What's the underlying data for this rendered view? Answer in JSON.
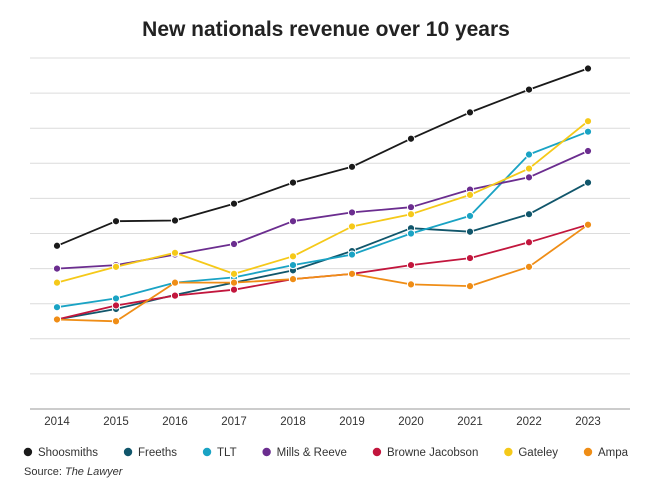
{
  "chart_data": {
    "type": "line",
    "title": "New nationals revenue over 10 years",
    "x": [
      "2014",
      "2015",
      "2016",
      "2017",
      "2018",
      "2019",
      "2020",
      "2021",
      "2022",
      "2023"
    ],
    "ylim": [
      0,
      100
    ],
    "y_tick_labels_shown": false,
    "grid": "horizontal",
    "legend_position": "bottom",
    "series": [
      {
        "name": "Shoosmiths",
        "color": "#1a1a1a",
        "values": [
          46.5,
          53.5,
          53.7,
          58.5,
          64.5,
          69,
          77,
          84.5,
          91,
          97
        ]
      },
      {
        "name": "Freeths",
        "color": "#11566b",
        "values": [
          25.5,
          28.5,
          32.5,
          36,
          39.5,
          45,
          51.5,
          50.5,
          55.5,
          64.5
        ]
      },
      {
        "name": "TLT",
        "color": "#1aa3c4",
        "values": [
          29,
          31.5,
          36,
          37.5,
          41,
          44,
          50,
          55,
          72.5,
          79
        ]
      },
      {
        "name": "Mills & Reeve",
        "color": "#6b2d8f",
        "values": [
          40,
          41,
          44,
          47,
          53.5,
          56,
          57.5,
          62.5,
          66,
          73.5
        ]
      },
      {
        "name": "Browne Jacobson",
        "color": "#c2163d",
        "values": [
          25.5,
          29.5,
          32.3,
          34,
          37,
          38.5,
          41,
          43,
          47.5,
          52.5
        ]
      },
      {
        "name": "Gateley",
        "color": "#f5c919",
        "values": [
          36,
          40.5,
          44.5,
          38.5,
          43.5,
          52,
          55.5,
          61,
          68.5,
          82
        ]
      },
      {
        "name": "Ampa",
        "color": "#ef8d16",
        "values": [
          25.5,
          25,
          36,
          36,
          37,
          38.5,
          35.5,
          35,
          40.5,
          52.5
        ]
      }
    ]
  },
  "source": {
    "prefix": "Source: ",
    "publication": "The Lawyer"
  }
}
